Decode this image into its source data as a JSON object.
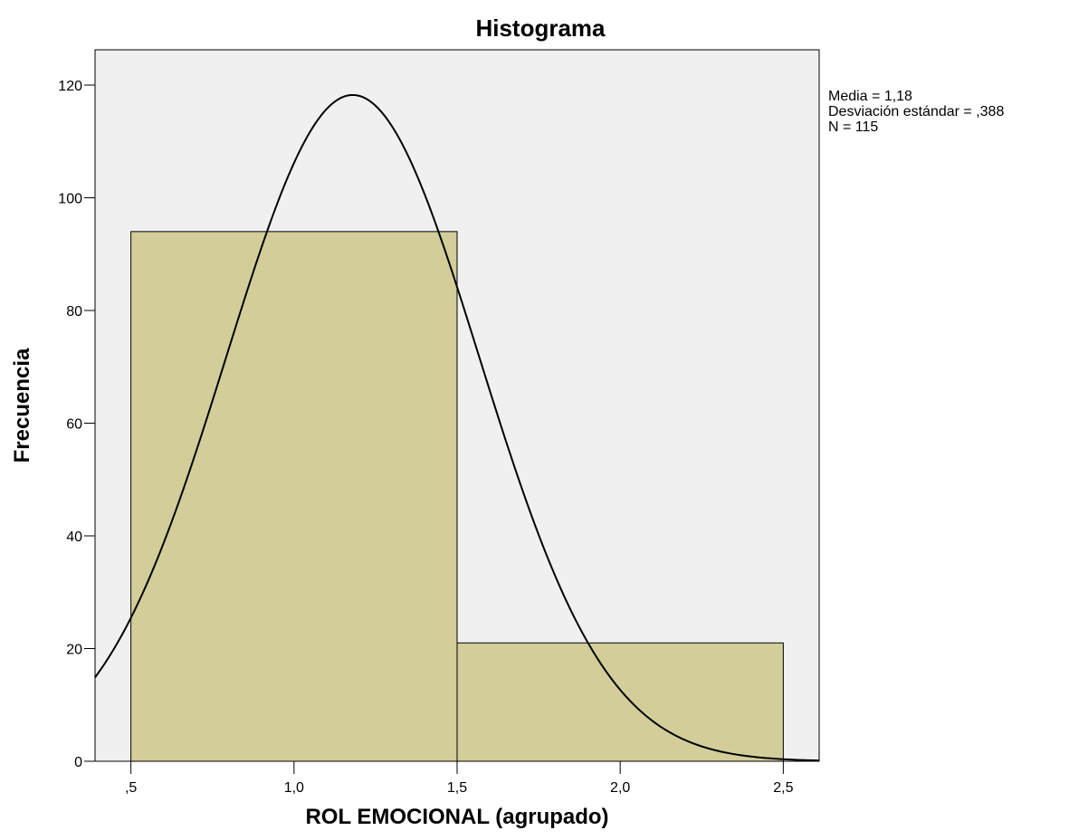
{
  "chart_data": {
    "type": "bar",
    "title": "Histograma",
    "xlabel": "ROL EMOCIONAL (agrupado)",
    "ylabel": "Frecuencia",
    "bins": [
      {
        "from": 0.5,
        "to": 1.5,
        "value": 94
      },
      {
        "from": 1.5,
        "to": 2.5,
        "value": 21
      }
    ],
    "xlim": [
      0.39,
      2.61
    ],
    "ylim": [
      0,
      120
    ],
    "x_ticks": [
      {
        "value": 0.5,
        "label": ",5"
      },
      {
        "value": 1.0,
        "label": "1,0"
      },
      {
        "value": 1.5,
        "label": "1,5"
      },
      {
        "value": 2.0,
        "label": "2,0"
      },
      {
        "value": 2.5,
        "label": "2,5"
      }
    ],
    "y_ticks": [
      {
        "value": 0,
        "label": "0"
      },
      {
        "value": 20,
        "label": "20"
      },
      {
        "value": 40,
        "label": "40"
      },
      {
        "value": 60,
        "label": "60"
      },
      {
        "value": 80,
        "label": "80"
      },
      {
        "value": 100,
        "label": "100"
      },
      {
        "value": 120,
        "label": "120"
      }
    ],
    "normal_curve": {
      "mean": 1.18,
      "sd": 0.388,
      "n": 115,
      "bin_width": 1.0
    },
    "stats": [
      "Media = 1,18",
      "Desviación estándar = ,388",
      "N = 115"
    ],
    "grid": false,
    "legend": "right",
    "colors": {
      "bar_fill": "#d3ce99",
      "bar_stroke": "#000000",
      "plot_bg": "#f0f0f0",
      "curve": "#000000"
    }
  }
}
